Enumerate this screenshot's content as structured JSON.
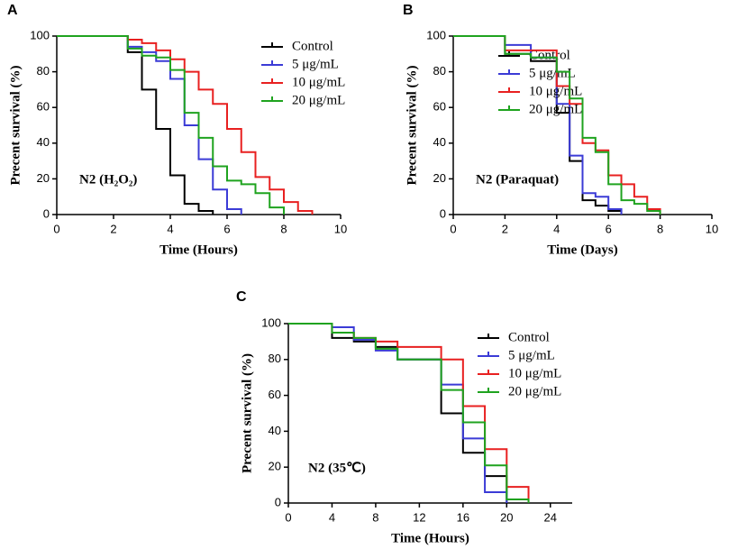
{
  "chart_data": [
    {
      "type": "step",
      "panel_label": "A",
      "xlabel": "Time (Hours)",
      "ylabel": "Precent survival (%)",
      "annotation": "N2 (H₂O₂)",
      "xlim": [
        0,
        10
      ],
      "xticks": [
        0,
        2,
        4,
        6,
        8,
        10
      ],
      "ylim": [
        0,
        100
      ],
      "yticks": [
        0,
        20,
        40,
        60,
        80,
        100
      ],
      "series": [
        {
          "name": "Control",
          "color": "#000000",
          "x": [
            0,
            2.5,
            3,
            3.5,
            4,
            4.5,
            5,
            5.5
          ],
          "values": [
            100,
            91,
            70,
            48,
            22,
            6,
            2,
            0
          ]
        },
        {
          "name": "5 μg/mL",
          "color": "#3b3bd6",
          "x": [
            0,
            2.5,
            3,
            3.5,
            4,
            4.5,
            5,
            5.5,
            6,
            6.5
          ],
          "values": [
            100,
            94,
            91,
            86,
            76,
            50,
            31,
            14,
            3,
            0
          ]
        },
        {
          "name": "10 μg/mL",
          "color": "#e82020",
          "x": [
            0,
            2.5,
            3,
            3.5,
            4,
            4.5,
            5,
            5.5,
            6,
            6.5,
            7,
            7.5,
            8,
            8.5,
            9
          ],
          "values": [
            100,
            98,
            96,
            92,
            87,
            80,
            70,
            62,
            48,
            35,
            21,
            14,
            7,
            2,
            0
          ]
        },
        {
          "name": "20 μg/mL",
          "color": "#1fa31f",
          "x": [
            0,
            2.5,
            3,
            3.5,
            4,
            4.5,
            5,
            5.5,
            6,
            6.5,
            7,
            7.5,
            8
          ],
          "values": [
            100,
            93,
            89,
            88,
            81,
            57,
            43,
            27,
            19,
            17,
            12,
            4,
            0
          ]
        }
      ]
    },
    {
      "type": "step",
      "panel_label": "B",
      "xlabel": "Time (Days)",
      "ylabel": "Precent survival (%)",
      "annotation": "N2 (Paraquat)",
      "xlim": [
        0,
        10
      ],
      "xticks": [
        0,
        2,
        4,
        6,
        8,
        10
      ],
      "ylim": [
        0,
        100
      ],
      "yticks": [
        0,
        20,
        40,
        60,
        80,
        100
      ],
      "series": [
        {
          "name": "Control",
          "color": "#000000",
          "x": [
            0,
            2,
            3,
            4,
            4.5,
            5,
            5.5,
            6,
            6.5
          ],
          "values": [
            100,
            90,
            86,
            57,
            30,
            8,
            5,
            2,
            0
          ]
        },
        {
          "name": "5 μg/mL",
          "color": "#3b3bd6",
          "x": [
            0,
            2,
            3,
            4,
            4.5,
            5,
            5.5,
            6,
            6.5
          ],
          "values": [
            100,
            95,
            88,
            62,
            33,
            12,
            10,
            3,
            0
          ]
        },
        {
          "name": "10 μg/mL",
          "color": "#e82020",
          "x": [
            0,
            2,
            3,
            4,
            4.5,
            5,
            5.5,
            6,
            6.5,
            7,
            7.5,
            8
          ],
          "values": [
            100,
            92,
            92,
            72,
            62,
            40,
            36,
            22,
            17,
            10,
            3,
            0
          ]
        },
        {
          "name": "20 μg/mL",
          "color": "#1fa31f",
          "x": [
            0,
            2,
            3,
            4,
            4.5,
            5,
            5.5,
            6,
            6.5,
            7,
            7.5,
            8
          ],
          "values": [
            100,
            90,
            88,
            80,
            65,
            43,
            35,
            17,
            8,
            6,
            2,
            0
          ]
        }
      ]
    },
    {
      "type": "step",
      "panel_label": "C",
      "xlabel": "Time (Hours)",
      "ylabel": "Precent survival (%)",
      "annotation": "N2 (35℃)",
      "xlim": [
        0,
        26
      ],
      "xticks": [
        0,
        4,
        8,
        12,
        16,
        20,
        24
      ],
      "ylim": [
        0,
        100
      ],
      "yticks": [
        0,
        20,
        40,
        60,
        80,
        100
      ],
      "series": [
        {
          "name": "Control",
          "color": "#000000",
          "x": [
            0,
            4,
            6,
            8,
            10,
            14,
            16,
            18,
            20
          ],
          "values": [
            100,
            92,
            90,
            87,
            80,
            50,
            28,
            15,
            0
          ]
        },
        {
          "name": "5 μg/mL",
          "color": "#3b3bd6",
          "x": [
            0,
            4,
            6,
            8,
            10,
            14,
            16,
            18,
            20
          ],
          "values": [
            100,
            98,
            91,
            85,
            80,
            66,
            36,
            6,
            0
          ]
        },
        {
          "name": "10 μg/mL",
          "color": "#e82020",
          "x": [
            0,
            4,
            6,
            8,
            10,
            14,
            16,
            18,
            20,
            22
          ],
          "values": [
            100,
            95,
            92,
            90,
            87,
            80,
            54,
            30,
            9,
            0
          ]
        },
        {
          "name": "20 μg/mL",
          "color": "#1fa31f",
          "x": [
            0,
            4,
            6,
            8,
            10,
            14,
            16,
            18,
            20,
            22
          ],
          "values": [
            100,
            95,
            92,
            86,
            80,
            63,
            45,
            21,
            2,
            0
          ]
        }
      ]
    }
  ]
}
